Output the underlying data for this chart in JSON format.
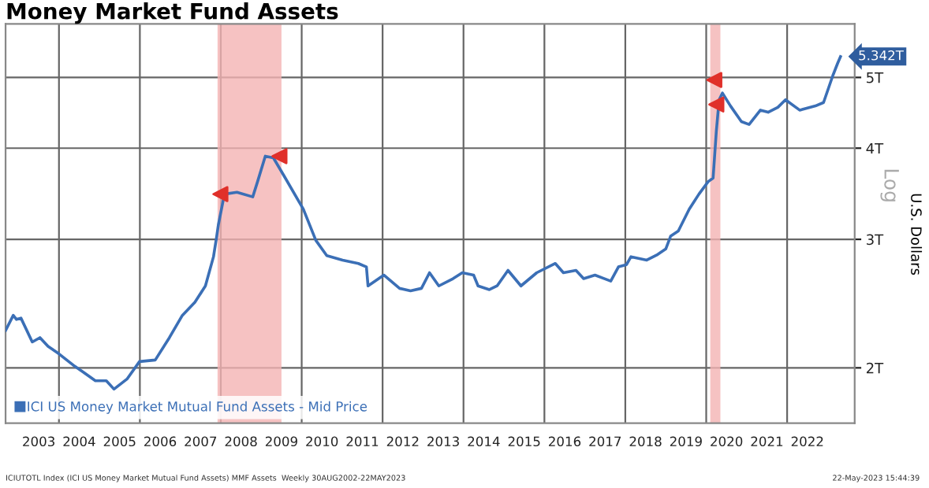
{
  "chart_data": {
    "type": "line",
    "title": "Money Market Fund Assets",
    "ylabel": "U.S. Dollars",
    "annotations": [
      "Log",
      "ICIUTOTL Index (ICI US Money Market Mutual Fund Assets) MMF Assets  Weekly 30AUG2002-22MAY2023",
      "22-May-2023 15:44:39",
      {
        "text": "5.342T",
        "x": 2023.32,
        "y": 5.342
      }
    ],
    "log": true,
    "grid": true,
    "legend": "bottom left",
    "marker": "none",
    "line_style": "solid",
    "xlim": [
      2002.68,
      2023.67
    ],
    "ylim": [
      1.68,
      5.92
    ],
    "xticks": [
      {
        "value": 2003.5,
        "label": "2003"
      },
      {
        "value": 2004,
        "label": null
      },
      {
        "value": 2004.5,
        "label": "2004"
      },
      {
        "value": 2005.5,
        "label": "2005"
      },
      {
        "value": 2006,
        "label": null
      },
      {
        "value": 2006.5,
        "label": "2006"
      },
      {
        "value": 2007.5,
        "label": "2007"
      },
      {
        "value": 2008,
        "label": null
      },
      {
        "value": 2008.5,
        "label": "2008"
      },
      {
        "value": 2009.5,
        "label": "2009"
      },
      {
        "value": 2010,
        "label": null
      },
      {
        "value": 2010.5,
        "label": "2010"
      },
      {
        "value": 2011.5,
        "label": "2011"
      },
      {
        "value": 2012,
        "label": null
      },
      {
        "value": 2012.5,
        "label": "2012"
      },
      {
        "value": 2013.5,
        "label": "2013"
      },
      {
        "value": 2014,
        "label": null
      },
      {
        "value": 2014.5,
        "label": "2014"
      },
      {
        "value": 2015.5,
        "label": "2015"
      },
      {
        "value": 2016,
        "label": null
      },
      {
        "value": 2016.5,
        "label": "2016"
      },
      {
        "value": 2017.5,
        "label": "2017"
      },
      {
        "value": 2018,
        "label": null
      },
      {
        "value": 2018.5,
        "label": "2018"
      },
      {
        "value": 2019.5,
        "label": "2019"
      },
      {
        "value": 2020,
        "label": null
      },
      {
        "value": 2020.5,
        "label": "2020"
      },
      {
        "value": 2021.5,
        "label": "2021"
      },
      {
        "value": 2022,
        "label": null
      },
      {
        "value": 2022.5,
        "label": "2022"
      }
    ],
    "yticks": [
      {
        "value": 2,
        "label": "2T"
      },
      {
        "value": 3,
        "label": "3T"
      },
      {
        "value": 4,
        "label": "4T"
      },
      {
        "value": 5,
        "label": "5T"
      }
    ],
    "bands": [
      {
        "axis": "x",
        "from": 2007.92,
        "to": 2009.5,
        "color": "#f4b3b3"
      },
      {
        "axis": "x",
        "from": 2020.1,
        "to": 2020.35,
        "color": "#f4b3b3"
      }
    ],
    "series": [
      {
        "name": "ICI US Money Market Mutual Fund Assets - Mid Price",
        "color": "#3b6fb6",
        "x": [
          2002.68,
          2002.87,
          2002.95,
          2003.06,
          2003.34,
          2003.53,
          2003.73,
          2004.0,
          2004.39,
          2004.62,
          2004.9,
          2005.17,
          2005.36,
          2005.68,
          2005.99,
          2006.38,
          2006.73,
          2007.05,
          2007.36,
          2007.62,
          2007.82,
          2007.9,
          2007.94,
          2008.09,
          2008.4,
          2008.79,
          2008.91,
          2009.1,
          2009.3,
          2009.57,
          2010.04,
          2010.35,
          2010.62,
          2011.01,
          2011.4,
          2011.6,
          2011.64,
          2012.03,
          2012.42,
          2012.69,
          2012.96,
          2013.16,
          2013.39,
          2013.74,
          2013.97,
          2014.25,
          2014.36,
          2014.64,
          2014.83,
          2015.1,
          2015.42,
          2015.81,
          2016.27,
          2016.47,
          2016.78,
          2016.97,
          2017.25,
          2017.64,
          2017.83,
          2018.03,
          2018.14,
          2018.53,
          2018.8,
          2019.0,
          2019.12,
          2019.31,
          2019.58,
          2019.82,
          2020.05,
          2020.17,
          2020.25,
          2020.32,
          2020.4,
          2020.6,
          2020.87,
          2021.06,
          2021.34,
          2021.53,
          2021.77,
          2021.96,
          2022.31,
          2022.7,
          2022.9,
          2023.13,
          2023.25,
          2023.32
        ],
        "values": [
          2.25,
          2.36,
          2.33,
          2.34,
          2.17,
          2.2,
          2.14,
          2.09,
          2.01,
          1.97,
          1.92,
          1.92,
          1.87,
          1.93,
          2.04,
          2.05,
          2.2,
          2.36,
          2.46,
          2.59,
          2.84,
          3.03,
          3.14,
          3.46,
          3.48,
          3.43,
          3.6,
          3.9,
          3.88,
          3.66,
          3.3,
          2.99,
          2.85,
          2.81,
          2.78,
          2.75,
          2.59,
          2.68,
          2.57,
          2.55,
          2.57,
          2.7,
          2.59,
          2.65,
          2.7,
          2.68,
          2.59,
          2.56,
          2.59,
          2.72,
          2.59,
          2.7,
          2.78,
          2.7,
          2.72,
          2.65,
          2.68,
          2.63,
          2.75,
          2.77,
          2.84,
          2.81,
          2.86,
          2.91,
          3.03,
          3.08,
          3.3,
          3.46,
          3.6,
          3.64,
          4.22,
          4.66,
          4.76,
          4.57,
          4.35,
          4.31,
          4.51,
          4.48,
          4.55,
          4.66,
          4.51,
          4.57,
          4.62,
          5.03,
          5.23,
          5.34
        ]
      },
      {
        "type": "scatter",
        "marker": "triangle",
        "color": "#e0302a",
        "x": [
          2007.99,
          2009.45,
          2020.2,
          2020.25
        ],
        "values": [
          3.46,
          3.9,
          4.96,
          4.59
        ]
      }
    ]
  }
}
